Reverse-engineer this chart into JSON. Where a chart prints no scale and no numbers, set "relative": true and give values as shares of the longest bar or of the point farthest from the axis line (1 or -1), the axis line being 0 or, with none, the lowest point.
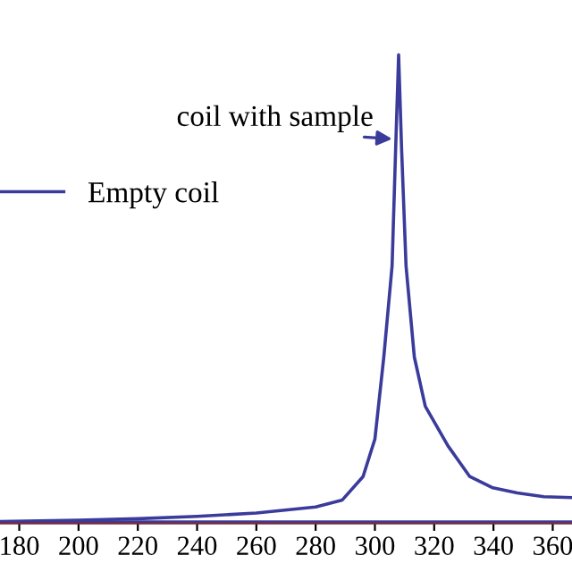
{
  "chart_data": {
    "type": "line",
    "relative": true,
    "series": [
      {
        "name": "Empty coil",
        "color": "#3b3b9b",
        "x": [
          173.5,
          200,
          240,
          280,
          320,
          366.5
        ],
        "values": [
          0.003,
          0.003,
          0.003,
          0.003,
          0.003,
          0.003
        ]
      },
      {
        "color": "#3b3b9b",
        "x": [
          173.5,
          200,
          220,
          240,
          260,
          280,
          289,
          296,
          300,
          303,
          305.8,
          307,
          308,
          309,
          310.5,
          313.3,
          317,
          324.7,
          332,
          339.8,
          348,
          357,
          366.5
        ],
        "values": [
          0.004,
          0.007,
          0.01,
          0.015,
          0.022,
          0.035,
          0.05,
          0.1,
          0.18,
          0.355,
          0.55,
          0.8,
          1,
          0.8,
          0.55,
          0.355,
          0.25,
          0.165,
          0.1,
          0.076,
          0.065,
          0.057,
          0.055
        ]
      }
    ],
    "xlim": [
      173.5,
      366.5
    ],
    "xticks": [
      180,
      200,
      220,
      240,
      260,
      280,
      300,
      320,
      340,
      360
    ],
    "annotations": [
      {
        "text": "coil with sample",
        "x": 307.5,
        "y": 0.82
      }
    ],
    "legend": "top left",
    "grid": false,
    "marker": "none",
    "line_style": "solid"
  }
}
